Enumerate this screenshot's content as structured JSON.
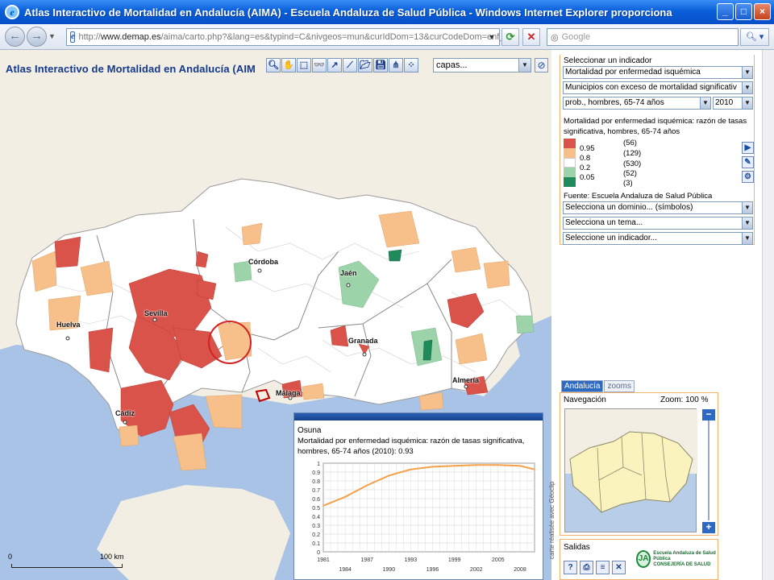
{
  "window": {
    "title": "Atlas Interactivo de Mortalidad en Andalucía (AIMA) - Escuela Andaluza de Salud Pública - Windows Internet Explorer proporciona",
    "controls": {
      "minimize": "_",
      "maximize": "□",
      "close": "×"
    }
  },
  "addressbar": {
    "url_prefix": "http://",
    "url_host": "www.demap.es",
    "url_path": "/aima/carto.php?&lang=es&typind=C&nivgeos=mun&curIdDom=13&curCodeDom=enf_",
    "search_placeholder": "Google"
  },
  "map": {
    "title": "Atlas Interactivo de Mortalidad en Andalucía (AIM",
    "layers_select": "capas...",
    "cities": {
      "cordoba": "Córdoba",
      "jaen": "Jaén",
      "sevilla": "Sevilla",
      "huelva": "Huelva",
      "granada": "Granada",
      "almeria": "Almería",
      "malaga": "Málaga",
      "cadiz": "Cádiz"
    },
    "scale": {
      "zero": "0",
      "km": "100 km"
    }
  },
  "popup": {
    "place": "Osuna",
    "description": "Mortalidad por enfermedad isquémica: razón de tasas significativa, hombres, 65-74 años (2010): 0.93"
  },
  "chart_data": {
    "type": "line",
    "title": "",
    "xlabel": "",
    "ylabel": "",
    "x": [
      1981,
      1984,
      1987,
      1990,
      1993,
      1996,
      1999,
      2002,
      2005,
      2008,
      2010
    ],
    "series": [
      {
        "values": [
          0.52,
          0.62,
          0.75,
          0.86,
          0.93,
          0.96,
          0.97,
          0.98,
          0.98,
          0.97,
          0.93
        ]
      }
    ],
    "xticks_top": [
      "1981",
      "1987",
      "1993",
      "1999",
      "2005"
    ],
    "xticks_bottom": [
      "1984",
      "1990",
      "1996",
      "2002",
      "2008"
    ],
    "yticks": [
      "0",
      "0.1",
      "0.2",
      "0.3",
      "0.4",
      "0.5",
      "0.6",
      "0.7",
      "0.8",
      "0.9",
      "1"
    ],
    "ylim": [
      0,
      1
    ],
    "xlim": [
      1981,
      2010
    ],
    "grid": true,
    "line_color": "#f5a04a"
  },
  "panel": {
    "label": "Seleccionar un indicador",
    "indicator": "Mortalidad por enfermedad isquémica",
    "map_type": "Municipios con exceso de mortalidad significativ",
    "subgroup": "prob., hombres, 65-74 años",
    "year": "2010",
    "description": "Mortalidad por enfermedad isquémica: razón de tasas significativa, hombres, 65-74 años",
    "legend": [
      {
        "threshold": "0.95",
        "count": "(56)",
        "color": "#d9534a"
      },
      {
        "threshold": "0.8",
        "count": "(129)",
        "color": "#f7c08a"
      },
      {
        "threshold": "0.2",
        "count": "(530)",
        "color": "#ffffff"
      },
      {
        "threshold": "0.05",
        "count": "(52)",
        "color": "#9dd3a8"
      },
      {
        "threshold": "",
        "count": "(3)",
        "color": "#1f8a5a"
      }
    ],
    "source": "Fuente: Escuela Andaluza de Salud Pública",
    "domain_select": "Selecciona un dominio... (símbolos)",
    "theme_select": "Selecciona un tema...",
    "indicator_select": "Seleccione un indicador..."
  },
  "navigation": {
    "tab_andalucia": "Andalucía",
    "tab_zooms": "zooms",
    "label": "Navegación",
    "zoom": "Zoom: 100 %"
  },
  "vertical_label": "carte réalisée avec Géoclip",
  "outputs": {
    "label": "Salidas",
    "logo_text1": "Escuela Andaluza de Salud Pública",
    "logo_text2": "CONSEJERÍA DE SALUD"
  },
  "colors": {
    "high": "#d9534a",
    "mid_high": "#f7c08a",
    "neutral": "#ffffff",
    "mid_low": "#9dd3a8",
    "low": "#1f8a5a",
    "sea": "#a8c3e6",
    "land_outside": "#f2eee4"
  }
}
